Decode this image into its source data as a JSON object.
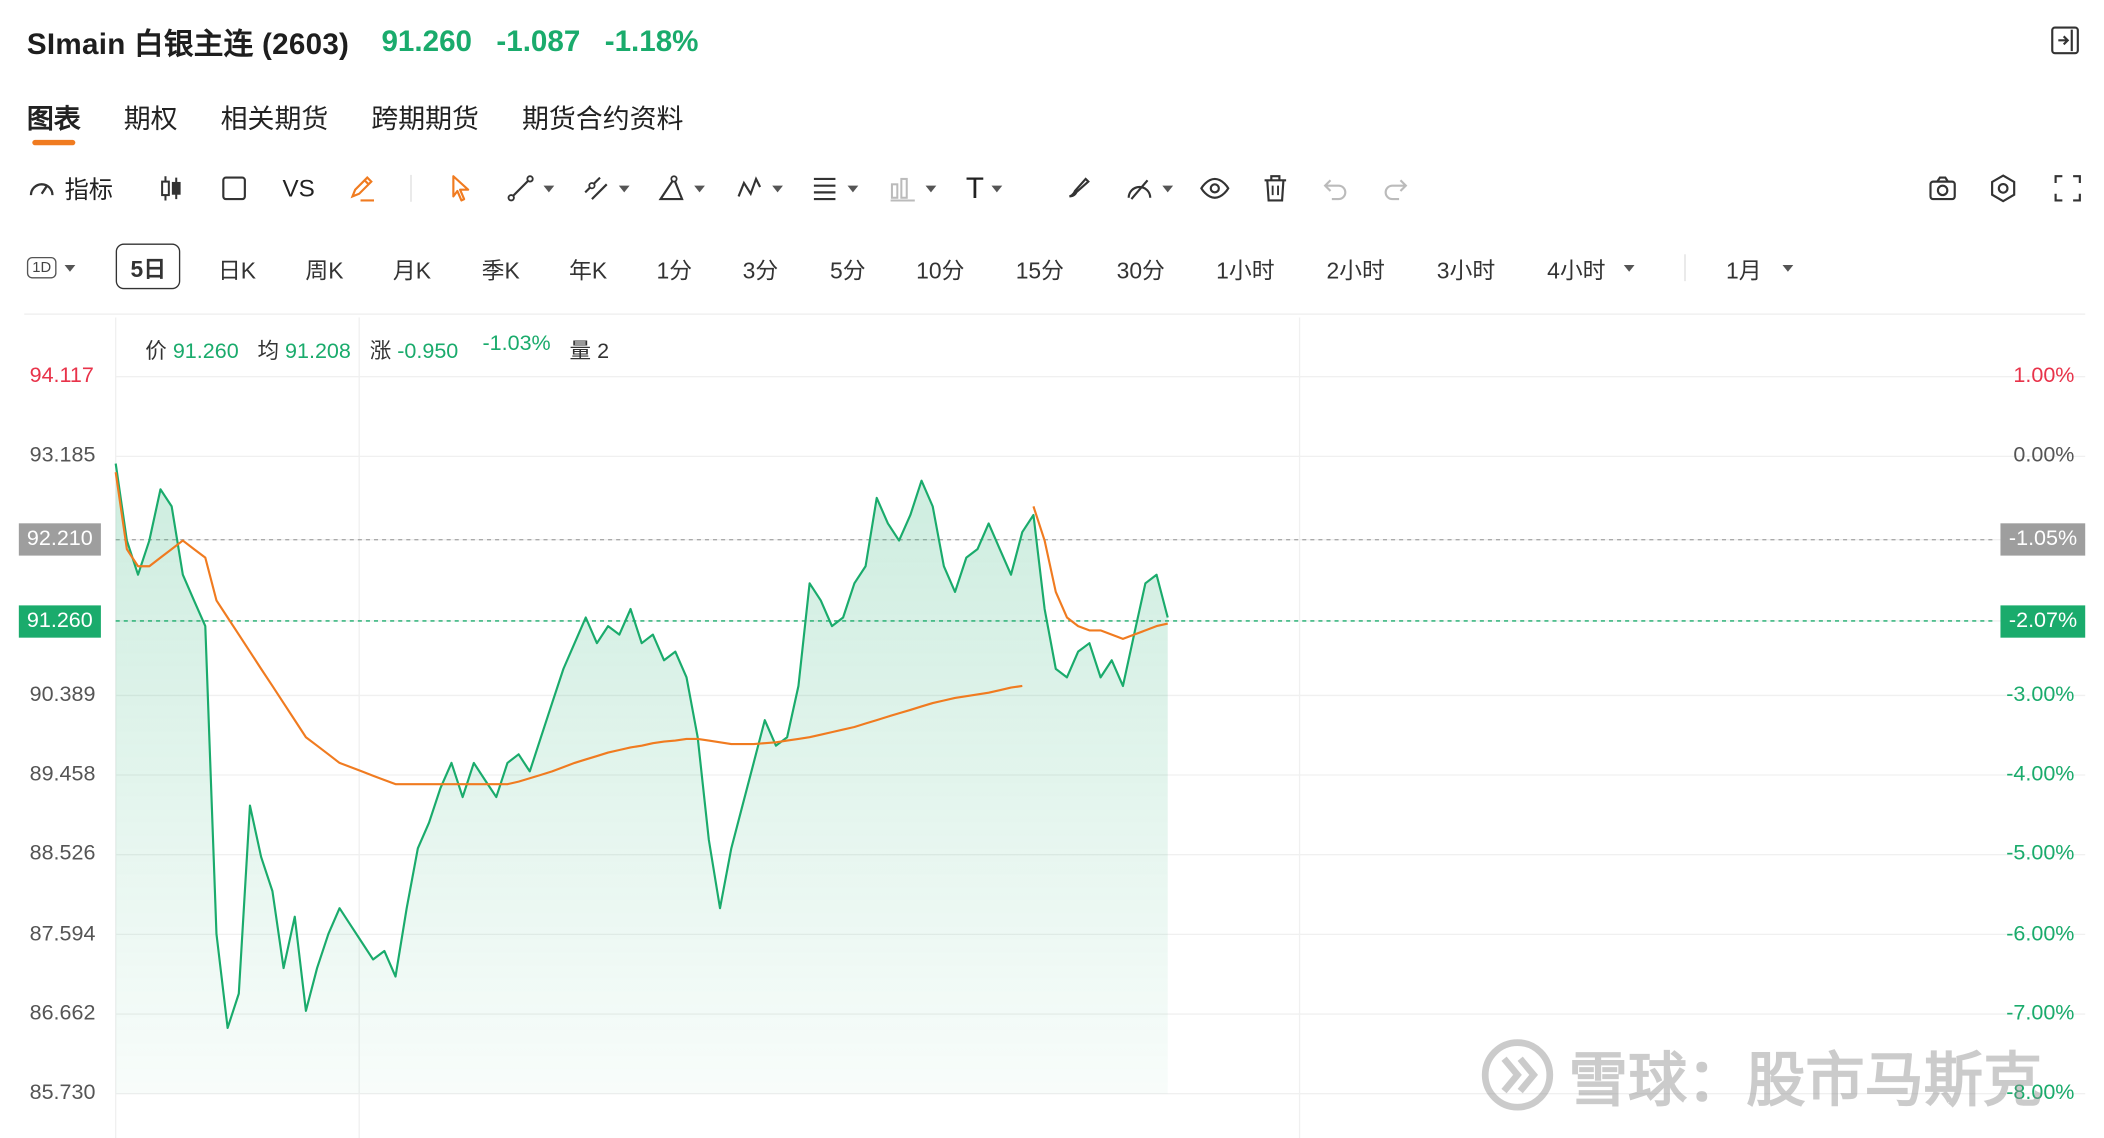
{
  "header": {
    "title": "SImain 白银主连 (2603)",
    "price": "91.260",
    "change": "-1.087",
    "change_pct": "-1.18%",
    "quote_color": "#1aab6c"
  },
  "tabs": [
    {
      "label": "图表",
      "active": true
    },
    {
      "label": "期权"
    },
    {
      "label": "相关期货"
    },
    {
      "label": "跨期期货"
    },
    {
      "label": "期货合约资料"
    }
  ],
  "toolbar": {
    "indicator_label": "指标",
    "vs_label": "VS",
    "text_tool_label": "T"
  },
  "periods": {
    "type_label": "1D",
    "items": [
      "5日",
      "日K",
      "周K",
      "月K",
      "季K",
      "年K",
      "1分",
      "3分",
      "5分",
      "10分",
      "15分",
      "30分",
      "1小时",
      "2小时",
      "3小时",
      "4小时"
    ],
    "active": "5日",
    "range_label": "1月"
  },
  "info_bar": {
    "price_label": "价",
    "price": "91.260",
    "avg_label": "均",
    "avg": "91.208",
    "change_label": "涨",
    "change": "-0.950",
    "change_pct": "-1.03%",
    "volume_label": "量",
    "volume": "2"
  },
  "watermark": {
    "text": "雪球：股市马斯克"
  },
  "chart_data": {
    "type": "line",
    "title": "",
    "xlabel": "",
    "ylabel": "",
    "grid": true,
    "y_ticks_left": [
      "94.117",
      "93.185",
      "92.210",
      "91.260",
      "90.389",
      "89.458",
      "88.526",
      "87.594",
      "86.662",
      "85.730"
    ],
    "y_ticks_right": [
      "1.00%",
      "0.00%",
      "-1.05%",
      "-2.07%",
      "-3.00%",
      "-4.00%",
      "-5.00%",
      "-6.00%",
      "-7.00%",
      "-8.00%"
    ],
    "ylim": [
      85.73,
      94.117
    ],
    "reference_lines": [
      {
        "value": 92.21,
        "label": "92.210",
        "pct": "-1.05%",
        "style": "grey"
      },
      {
        "value": 91.26,
        "label": "91.260",
        "pct": "-2.07%",
        "style": "green"
      }
    ],
    "series": [
      {
        "type": "area",
        "color": "#1aab6c",
        "points": [
          [
            0,
            93.1
          ],
          [
            1,
            92.2
          ],
          [
            2,
            91.8
          ],
          [
            3,
            92.2
          ],
          [
            4,
            92.8
          ],
          [
            5,
            92.6
          ],
          [
            6,
            91.8
          ],
          [
            7,
            91.5
          ],
          [
            8,
            91.2
          ],
          [
            9,
            87.6
          ],
          [
            10,
            86.5
          ],
          [
            11,
            86.9
          ],
          [
            12,
            89.1
          ],
          [
            13,
            88.5
          ],
          [
            14,
            88.1
          ],
          [
            15,
            87.2
          ],
          [
            16,
            87.8
          ],
          [
            17,
            86.7
          ],
          [
            18,
            87.2
          ],
          [
            19,
            87.6
          ],
          [
            20,
            87.9
          ],
          [
            21,
            87.7
          ],
          [
            22,
            87.5
          ],
          [
            23,
            87.3
          ],
          [
            24,
            87.4
          ],
          [
            25,
            87.1
          ],
          [
            26,
            87.9
          ],
          [
            27,
            88.6
          ],
          [
            28,
            88.9
          ],
          [
            29,
            89.3
          ],
          [
            30,
            89.6
          ],
          [
            31,
            89.2
          ],
          [
            32,
            89.6
          ],
          [
            33,
            89.4
          ],
          [
            34,
            89.2
          ],
          [
            35,
            89.6
          ],
          [
            36,
            89.7
          ],
          [
            37,
            89.5
          ],
          [
            38,
            89.9
          ],
          [
            39,
            90.3
          ],
          [
            40,
            90.7
          ],
          [
            41,
            91.0
          ],
          [
            42,
            91.3
          ],
          [
            43,
            91.0
          ],
          [
            44,
            91.2
          ],
          [
            45,
            91.1
          ],
          [
            46,
            91.4
          ],
          [
            47,
            91.0
          ],
          [
            48,
            91.1
          ],
          [
            49,
            90.8
          ],
          [
            50,
            90.9
          ],
          [
            51,
            90.6
          ],
          [
            52,
            89.9
          ],
          [
            53,
            88.7
          ],
          [
            54,
            87.9
          ],
          [
            55,
            88.6
          ],
          [
            56,
            89.1
          ],
          [
            57,
            89.6
          ],
          [
            58,
            90.1
          ],
          [
            59,
            89.8
          ],
          [
            60,
            89.9
          ],
          [
            61,
            90.5
          ],
          [
            62,
            91.7
          ],
          [
            63,
            91.5
          ],
          [
            64,
            91.2
          ],
          [
            65,
            91.3
          ],
          [
            66,
            91.7
          ],
          [
            67,
            91.9
          ],
          [
            68,
            92.7
          ],
          [
            69,
            92.4
          ],
          [
            70,
            92.2
          ],
          [
            71,
            92.5
          ],
          [
            72,
            92.9
          ],
          [
            73,
            92.6
          ],
          [
            74,
            91.9
          ],
          [
            75,
            91.6
          ],
          [
            76,
            92.0
          ],
          [
            77,
            92.1
          ],
          [
            78,
            92.4
          ],
          [
            79,
            92.1
          ],
          [
            80,
            91.8
          ],
          [
            81,
            92.3
          ],
          [
            82,
            92.5
          ],
          [
            83,
            91.4
          ],
          [
            84,
            90.7
          ],
          [
            85,
            90.6
          ],
          [
            86,
            90.9
          ],
          [
            87,
            91.0
          ],
          [
            88,
            90.6
          ],
          [
            89,
            90.8
          ],
          [
            90,
            90.5
          ],
          [
            91,
            91.1
          ],
          [
            92,
            91.7
          ],
          [
            93,
            91.8
          ],
          [
            94,
            91.3
          ]
        ]
      },
      {
        "name": "",
        "type": "line",
        "color": "#f07b20",
        "segments": [
          [
            [
              0,
              93.0
            ],
            [
              1,
              92.1
            ],
            [
              2,
              91.9
            ],
            [
              3,
              91.9
            ],
            [
              4,
              92.0
            ],
            [
              5,
              92.1
            ],
            [
              6,
              92.2
            ],
            [
              7,
              92.1
            ],
            [
              8,
              92.0
            ],
            [
              9,
              91.5
            ],
            [
              10,
              91.3
            ],
            [
              11,
              91.1
            ],
            [
              12,
              90.9
            ],
            [
              13,
              90.7
            ],
            [
              14,
              90.5
            ],
            [
              15,
              90.3
            ],
            [
              16,
              90.1
            ],
            [
              17,
              89.9
            ],
            [
              18,
              89.8
            ],
            [
              19,
              89.7
            ],
            [
              20,
              89.6
            ],
            [
              21,
              89.55
            ],
            [
              22,
              89.5
            ],
            [
              23,
              89.45
            ],
            [
              24,
              89.4
            ],
            [
              25,
              89.35
            ],
            [
              26,
              89.35
            ],
            [
              27,
              89.35
            ],
            [
              28,
              89.35
            ],
            [
              29,
              89.35
            ],
            [
              30,
              89.35
            ],
            [
              31,
              89.35
            ],
            [
              32,
              89.35
            ],
            [
              33,
              89.35
            ],
            [
              34,
              89.35
            ],
            [
              35,
              89.35
            ],
            [
              36,
              89.38
            ],
            [
              37,
              89.42
            ],
            [
              38,
              89.46
            ],
            [
              39,
              89.5
            ],
            [
              40,
              89.55
            ],
            [
              41,
              89.6
            ],
            [
              42,
              89.64
            ],
            [
              43,
              89.68
            ],
            [
              44,
              89.72
            ],
            [
              45,
              89.75
            ],
            [
              46,
              89.78
            ],
            [
              47,
              89.8
            ],
            [
              48,
              89.83
            ],
            [
              49,
              89.85
            ],
            [
              50,
              89.86
            ],
            [
              51,
              89.88
            ],
            [
              52,
              89.88
            ],
            [
              53,
              89.86
            ],
            [
              54,
              89.84
            ],
            [
              55,
              89.82
            ],
            [
              56,
              89.82
            ],
            [
              57,
              89.82
            ],
            [
              58,
              89.83
            ],
            [
              59,
              89.84
            ],
            [
              60,
              89.86
            ],
            [
              61,
              89.88
            ],
            [
              62,
              89.9
            ],
            [
              63,
              89.93
            ],
            [
              64,
              89.96
            ],
            [
              65,
              89.99
            ],
            [
              66,
              90.02
            ],
            [
              67,
              90.06
            ],
            [
              68,
              90.1
            ],
            [
              69,
              90.14
            ],
            [
              70,
              90.18
            ],
            [
              71,
              90.22
            ],
            [
              72,
              90.26
            ],
            [
              73,
              90.3
            ],
            [
              74,
              90.33
            ],
            [
              75,
              90.36
            ],
            [
              76,
              90.38
            ],
            [
              77,
              90.4
            ],
            [
              78,
              90.42
            ],
            [
              79,
              90.45
            ],
            [
              80,
              90.48
            ],
            [
              81,
              90.5
            ]
          ],
          [
            [
              82,
              92.6
            ],
            [
              83,
              92.2
            ],
            [
              84,
              91.6
            ],
            [
              85,
              91.3
            ],
            [
              86,
              91.2
            ],
            [
              87,
              91.15
            ],
            [
              88,
              91.15
            ],
            [
              89,
              91.1
            ],
            [
              90,
              91.05
            ],
            [
              91,
              91.1
            ],
            [
              92,
              91.15
            ],
            [
              93,
              91.2
            ],
            [
              94,
              91.23
            ]
          ]
        ]
      }
    ]
  }
}
